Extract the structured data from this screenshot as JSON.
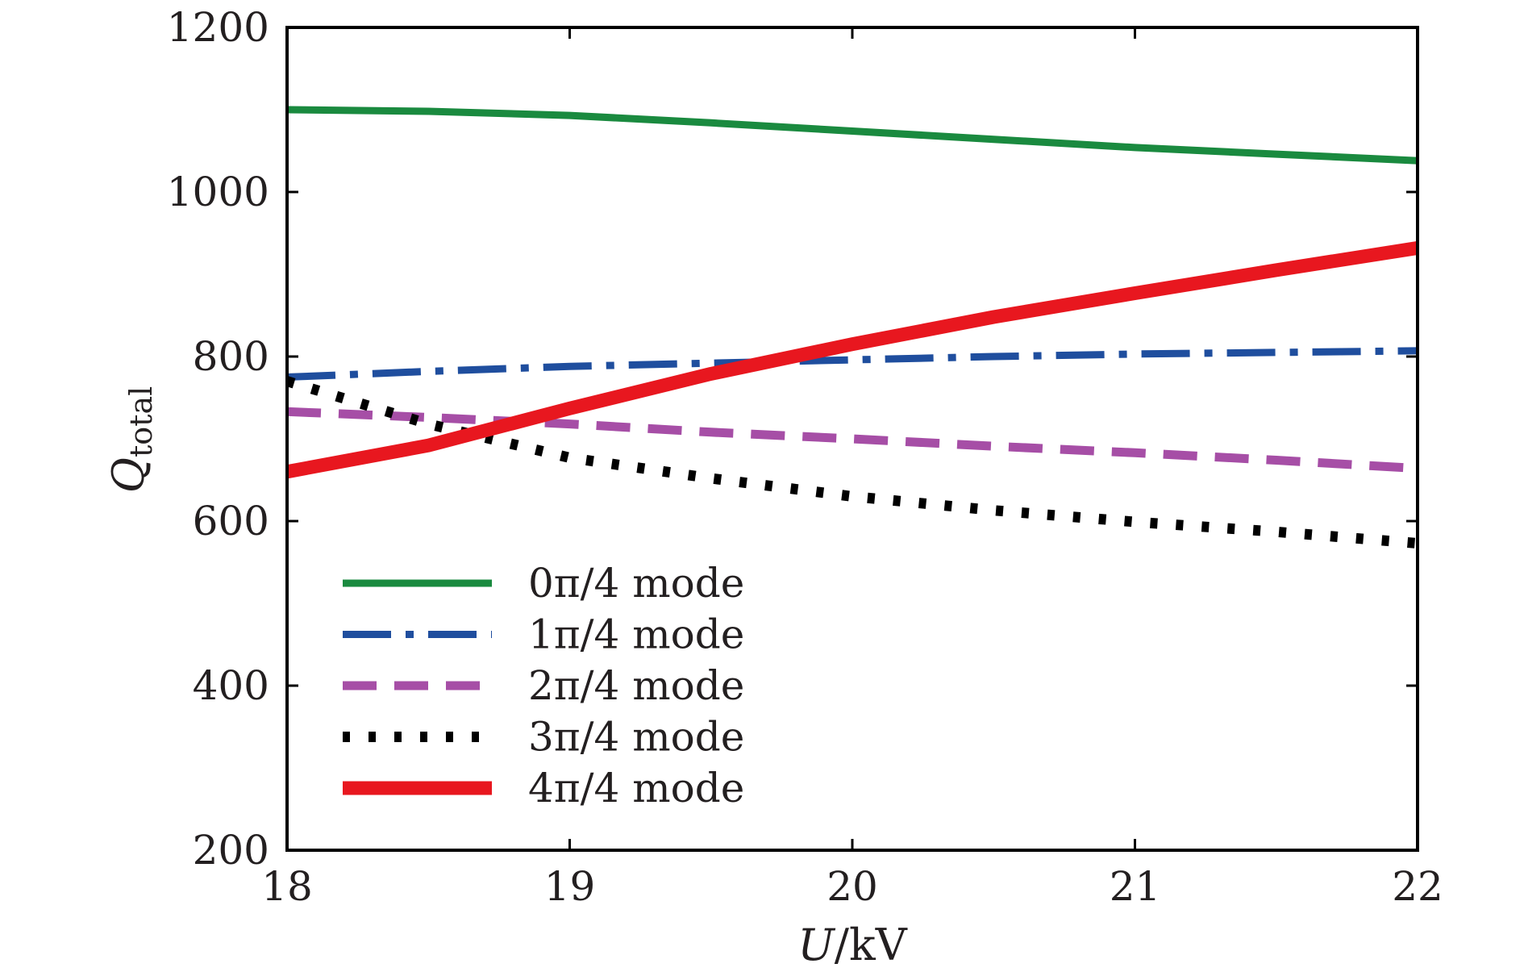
{
  "chart_data": {
    "type": "line",
    "xlabel": {
      "var": "U",
      "unit": "/kV"
    },
    "ylabel": {
      "var": "Q",
      "sub": "total"
    },
    "xlim": [
      18,
      22
    ],
    "ylim": [
      200,
      1200
    ],
    "xticks": [
      "18",
      "19",
      "20",
      "21",
      "22"
    ],
    "yticks": [
      "200",
      "400",
      "600",
      "800",
      "1000",
      "1200"
    ],
    "legend_position": "lower-left",
    "grid": false,
    "x": [
      18,
      18.5,
      19,
      19.5,
      20,
      20.5,
      21,
      21.5,
      22
    ],
    "series": [
      {
        "name": "0π/4 mode",
        "color": "#1a8a3f",
        "style": "solid-thin",
        "values": [
          1100,
          1098,
          1093,
          1084,
          1074,
          1064,
          1054,
          1046,
          1038
        ]
      },
      {
        "name": "1π/4 mode",
        "color": "#1f4e9e",
        "style": "dashdot",
        "values": [
          775,
          782,
          788,
          792,
          796,
          800,
          803,
          805,
          807
        ]
      },
      {
        "name": "2π/4 mode",
        "color": "#a64ea6",
        "style": "dashed",
        "values": [
          733,
          726,
          718,
          708,
          700,
          691,
          683,
          674,
          664
        ]
      },
      {
        "name": "3π/4 mode",
        "color": "#000000",
        "style": "dotted",
        "values": [
          770,
          718,
          677,
          652,
          630,
          613,
          599,
          587,
          573
        ]
      },
      {
        "name": "4π/4 mode",
        "color": "#e8171f",
        "style": "solid-thick",
        "values": [
          660,
          692,
          737,
          779,
          815,
          848,
          877,
          905,
          932
        ]
      }
    ]
  }
}
